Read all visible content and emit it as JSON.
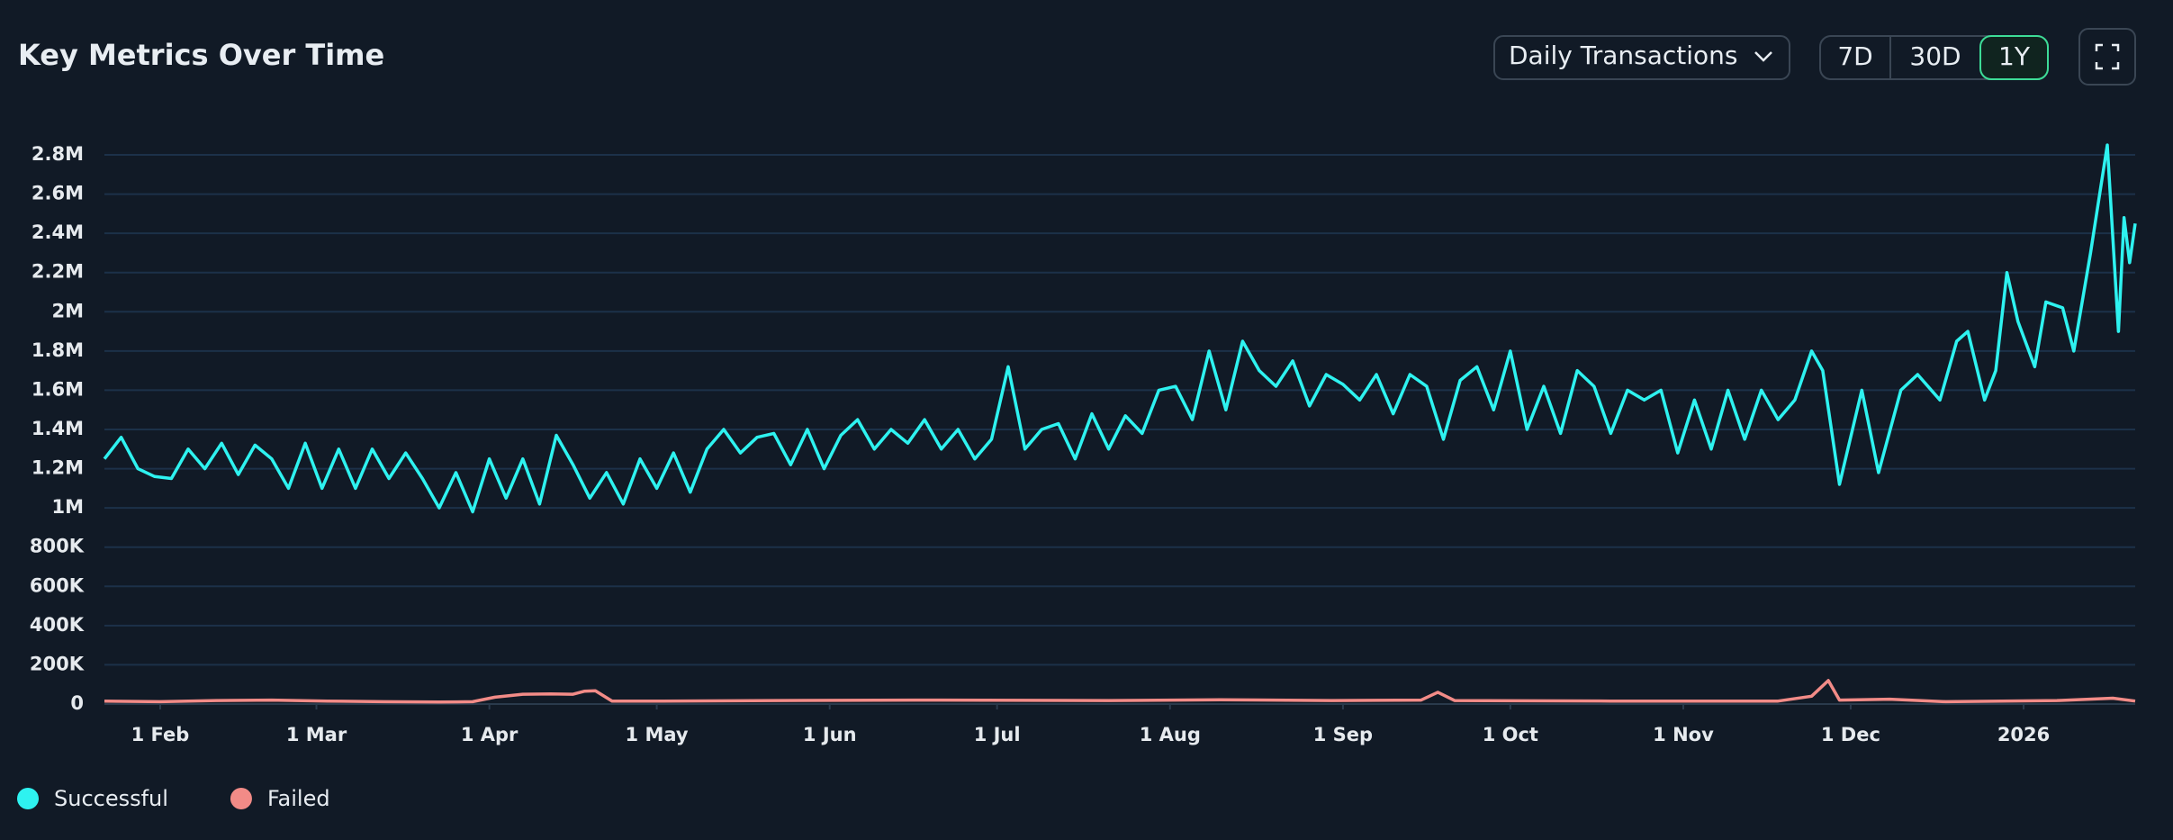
{
  "header": {
    "dropdown": "Daily Transactions",
    "ranges": [
      "7D",
      "30D",
      "1Y"
    ],
    "active_range": "1Y"
  },
  "chart_data": {
    "type": "line",
    "title": "Key Metrics Over Time",
    "xlim": [
      0,
      364
    ],
    "xticks": [
      {
        "value": 10,
        "label": "1 Feb"
      },
      {
        "value": 38,
        "label": "1 Mar"
      },
      {
        "value": 69,
        "label": "1 Apr"
      },
      {
        "value": 99,
        "label": "1 May"
      },
      {
        "value": 130,
        "label": "1 Jun"
      },
      {
        "value": 160,
        "label": "1 Jul"
      },
      {
        "value": 191,
        "label": "1 Aug"
      },
      {
        "value": 222,
        "label": "1 Sep"
      },
      {
        "value": 252,
        "label": "1 Oct"
      },
      {
        "value": 283,
        "label": "1 Nov"
      },
      {
        "value": 313,
        "label": "1 Dec"
      },
      {
        "value": 344,
        "label": "2026"
      }
    ],
    "ylim": [
      0,
      2800000
    ],
    "yticks": [
      0,
      {
        "value": 200000,
        "label": "200K"
      },
      {
        "value": 400000,
        "label": "400K"
      },
      {
        "value": 600000,
        "label": "600K"
      },
      {
        "value": 800000,
        "label": "800K"
      },
      {
        "value": 1000000,
        "label": "1M"
      },
      {
        "value": 1200000,
        "label": "1.2M"
      },
      {
        "value": 1400000,
        "label": "1.4M"
      },
      {
        "value": 1600000,
        "label": "1.6M"
      },
      {
        "value": 1800000,
        "label": "1.8M"
      },
      {
        "value": 2000000,
        "label": "2M"
      },
      {
        "value": 2200000,
        "label": "2.2M"
      },
      {
        "value": 2400000,
        "label": "2.4M"
      },
      {
        "value": 2600000,
        "label": "2.6M"
      },
      {
        "value": 2800000,
        "label": "2.8M"
      }
    ],
    "grid": true,
    "legend": "bottom-left",
    "series": [
      {
        "name": "Successful",
        "color": "#2ef2f0",
        "x": [
          0,
          3,
          6,
          9,
          12,
          15,
          18,
          21,
          24,
          27,
          30,
          33,
          36,
          39,
          42,
          45,
          48,
          51,
          54,
          57,
          60,
          63,
          66,
          69,
          72,
          75,
          78,
          81,
          84,
          87,
          90,
          93,
          96,
          99,
          102,
          105,
          108,
          111,
          114,
          117,
          120,
          123,
          126,
          129,
          132,
          135,
          138,
          141,
          144,
          147,
          150,
          153,
          156,
          159,
          162,
          165,
          168,
          171,
          174,
          177,
          180,
          183,
          186,
          189,
          192,
          195,
          198,
          201,
          204,
          207,
          210,
          213,
          216,
          219,
          222,
          225,
          228,
          231,
          234,
          237,
          240,
          243,
          246,
          249,
          252,
          255,
          258,
          261,
          264,
          267,
          270,
          273,
          276,
          279,
          282,
          285,
          288,
          291,
          294,
          297,
          300,
          303,
          306,
          308,
          311,
          315,
          318,
          322,
          325,
          329,
          332,
          334,
          337,
          339,
          341,
          343,
          346,
          348,
          351,
          353,
          356,
          359,
          361,
          362,
          363,
          364
        ],
        "values": [
          1250000,
          1360000,
          1200000,
          1160000,
          1150000,
          1300000,
          1200000,
          1330000,
          1170000,
          1320000,
          1250000,
          1100000,
          1330000,
          1100000,
          1300000,
          1100000,
          1300000,
          1150000,
          1280000,
          1150000,
          1000000,
          1180000,
          980000,
          1250000,
          1050000,
          1250000,
          1020000,
          1370000,
          1220000,
          1050000,
          1180000,
          1020000,
          1250000,
          1100000,
          1280000,
          1080000,
          1300000,
          1400000,
          1280000,
          1360000,
          1380000,
          1220000,
          1400000,
          1200000,
          1370000,
          1450000,
          1300000,
          1400000,
          1330000,
          1450000,
          1300000,
          1400000,
          1250000,
          1350000,
          1720000,
          1300000,
          1400000,
          1430000,
          1250000,
          1480000,
          1300000,
          1470000,
          1380000,
          1600000,
          1620000,
          1450000,
          1800000,
          1500000,
          1850000,
          1700000,
          1620000,
          1750000,
          1520000,
          1680000,
          1630000,
          1550000,
          1680000,
          1480000,
          1680000,
          1620000,
          1350000,
          1650000,
          1720000,
          1500000,
          1800000,
          1400000,
          1620000,
          1380000,
          1700000,
          1620000,
          1380000,
          1600000,
          1550000,
          1600000,
          1280000,
          1550000,
          1300000,
          1600000,
          1350000,
          1600000,
          1450000,
          1550000,
          1800000,
          1700000,
          1120000,
          1600000,
          1180000,
          1600000,
          1680000,
          1550000,
          1850000,
          1900000,
          1550000,
          1700000,
          2200000,
          1950000,
          1720000,
          2050000,
          2020000,
          1800000,
          2300000,
          2850000,
          1900000,
          2480000,
          2250000,
          2450000
        ]
      },
      {
        "name": "Failed",
        "color": "#f28b87",
        "x": [
          0,
          10,
          20,
          30,
          40,
          50,
          60,
          66,
          70,
          75,
          80,
          84,
          86,
          88,
          91,
          100,
          120,
          150,
          180,
          200,
          220,
          236,
          239,
          242,
          270,
          300,
          306,
          309,
          311,
          320,
          330,
          350,
          360,
          364
        ],
        "values": [
          15000,
          12000,
          18000,
          20000,
          15000,
          12000,
          10000,
          12000,
          35000,
          50000,
          52000,
          50000,
          65000,
          68000,
          15000,
          15000,
          18000,
          20000,
          18000,
          22000,
          18000,
          20000,
          60000,
          18000,
          15000,
          15000,
          40000,
          120000,
          20000,
          25000,
          12000,
          18000,
          30000,
          15000
        ]
      }
    ]
  }
}
